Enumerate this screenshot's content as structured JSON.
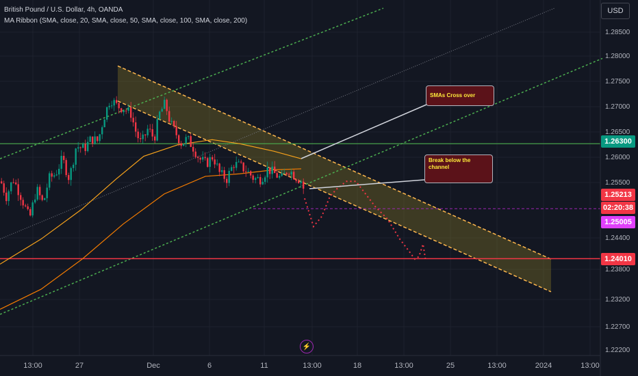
{
  "header": {
    "symbol_line": "British Pound / U.S. Dollar, 4h, OANDA",
    "indicator_line": "MA Ribbon (SMA, close, 20, SMA, close, 50, SMA, close, 100, SMA, close, 200)"
  },
  "currency_button": "USD",
  "price_axis": [
    "1.28500",
    "1.28000",
    "1.27500",
    "1.27000",
    "1.26500",
    "1.26000",
    "1.25500",
    "1.24400",
    "1.23800",
    "1.23200",
    "1.22700",
    "1.22200"
  ],
  "time_axis": [
    "13:00",
    "27",
    "Dec",
    "6",
    "11",
    "13:00",
    "18",
    "13:00",
    "25",
    "13:00",
    "2024",
    "13:00"
  ],
  "badges": {
    "resistance": {
      "text": "1.26300",
      "color": "#089981"
    },
    "last_price": {
      "text": "1.25213",
      "color": "#f23645"
    },
    "countdown": {
      "text": "02:20:38",
      "color": "#f23645"
    },
    "marker": {
      "text": "1.25005",
      "color": "#e040fb"
    },
    "support": {
      "text": "1.24010",
      "color": "#f23645"
    }
  },
  "annotations": {
    "sma_cross": "SMAs Cross over",
    "break_channel": "Break below the channel"
  },
  "chart_data": {
    "type": "candlestick",
    "ylim": [
      1.2208,
      1.29
    ],
    "horizontal_levels": [
      {
        "value": 1.263,
        "color": "#4caf50"
      },
      {
        "value": 1.2401,
        "color": "#f23645"
      }
    ],
    "marker_level": 1.25005,
    "last_price": 1.25213,
    "candle_path": [
      [
        0,
        1.2555
      ],
      [
        8,
        1.2525
      ],
      [
        18,
        1.256
      ],
      [
        28,
        1.253
      ],
      [
        42,
        1.248
      ],
      [
        52,
        1.254
      ],
      [
        62,
        1.251
      ],
      [
        70,
        1.256
      ],
      [
        80,
        1.257
      ],
      [
        90,
        1.26
      ],
      [
        100,
        1.256
      ],
      [
        110,
        1.2625
      ],
      [
        122,
        1.262
      ],
      [
        132,
        1.264
      ],
      [
        142,
        1.2635
      ],
      [
        150,
        1.268
      ],
      [
        160,
        1.272
      ],
      [
        170,
        1.2705
      ],
      [
        180,
        1.27
      ],
      [
        190,
        1.269
      ],
      [
        198,
        1.265
      ],
      [
        205,
        1.263
      ],
      [
        215,
        1.266
      ],
      [
        224,
        1.264
      ],
      [
        232,
        1.269
      ],
      [
        240,
        1.271
      ],
      [
        248,
        1.267
      ],
      [
        256,
        1.265
      ],
      [
        264,
        1.263
      ],
      [
        272,
        1.264
      ],
      [
        280,
        1.2625
      ],
      [
        290,
        1.26
      ],
      [
        300,
        1.259
      ],
      [
        310,
        1.2605
      ],
      [
        320,
        1.257
      ],
      [
        330,
        1.256
      ],
      [
        340,
        1.259
      ],
      [
        350,
        1.2585
      ],
      [
        360,
        1.2575
      ],
      [
        370,
        1.256
      ],
      [
        380,
        1.256
      ],
      [
        390,
        1.258
      ],
      [
        400,
        1.257
      ],
      [
        410,
        1.256
      ],
      [
        420,
        1.258
      ],
      [
        430,
        1.2565
      ],
      [
        440,
        1.2555
      ],
      [
        445,
        1.2521
      ]
    ],
    "ma_fast": [
      [
        0,
        1.239
      ],
      [
        60,
        1.244
      ],
      [
        120,
        1.25
      ],
      [
        170,
        1.256
      ],
      [
        210,
        1.2605
      ],
      [
        260,
        1.2628
      ],
      [
        310,
        1.2638
      ],
      [
        350,
        1.263
      ],
      [
        400,
        1.2615
      ],
      [
        440,
        1.26
      ]
    ],
    "ma_slow": [
      [
        0,
        1.23
      ],
      [
        60,
        1.234
      ],
      [
        120,
        1.24
      ],
      [
        180,
        1.247
      ],
      [
        240,
        1.253
      ],
      [
        300,
        1.2565
      ],
      [
        350,
        1.257
      ],
      [
        400,
        1.2578
      ],
      [
        440,
        1.258
      ]
    ],
    "projection": [
      [
        445,
        1.2521
      ],
      [
        458,
        1.2465
      ],
      [
        470,
        1.2485
      ],
      [
        482,
        1.2525
      ],
      [
        492,
        1.254
      ],
      [
        506,
        1.2555
      ],
      [
        520,
        1.2555
      ],
      [
        534,
        1.253
      ],
      [
        548,
        1.2505
      ],
      [
        566,
        1.248
      ],
      [
        584,
        1.244
      ],
      [
        598,
        1.2415
      ],
      [
        606,
        1.24
      ],
      [
        612,
        1.2405
      ],
      [
        618,
        1.243
      ],
      [
        622,
        1.2395
      ]
    ],
    "descending_channel": {
      "upper": [
        [
          172,
          1.2785
        ],
        [
          805,
          1.24
        ]
      ],
      "lower": [
        [
          172,
          1.2715
        ],
        [
          805,
          1.2335
        ]
      ]
    },
    "ascending_channel": {
      "lower": [
        [
          0,
          1.229
        ],
        [
          880,
          1.28
        ]
      ],
      "upper": [
        [
          0,
          1.26
        ],
        [
          560,
          1.29
        ]
      ],
      "mid": [
        [
          0,
          1.244
        ],
        [
          810,
          1.29
        ]
      ]
    }
  }
}
